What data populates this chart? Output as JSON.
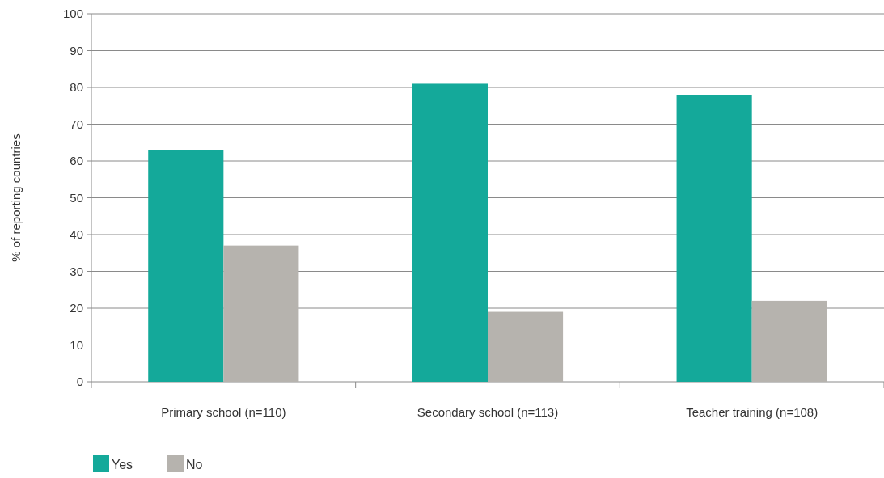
{
  "chart_data": {
    "type": "bar",
    "ylabel": "% of reporting countries",
    "categories": [
      "Primary school (n=110)",
      "Secondary school (n=113)",
      "Teacher training (n=108)"
    ],
    "series": [
      {
        "name": "Yes",
        "color": "#14a99a",
        "values": [
          63,
          81,
          78
        ]
      },
      {
        "name": "No",
        "color": "#b6b3ae",
        "values": [
          37,
          19,
          22
        ]
      }
    ],
    "ylim": [
      0,
      100
    ],
    "yticks": [
      0,
      10,
      20,
      30,
      40,
      50,
      60,
      70,
      80,
      90,
      100
    ],
    "grid": "y",
    "legend": "bottom left"
  }
}
